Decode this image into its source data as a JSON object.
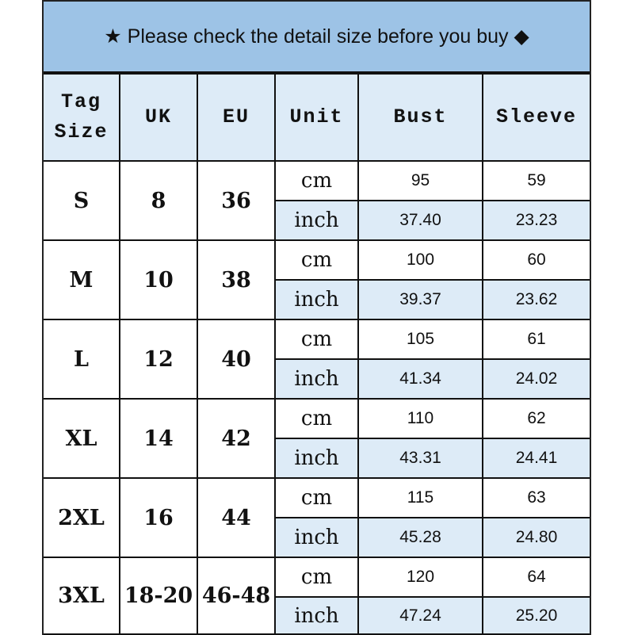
{
  "banner": {
    "text": "★ Please check the detail size before you buy ◆"
  },
  "header": [
    "Tag Size",
    "UK",
    "EU",
    "Unit",
    "Bust",
    "Sleeve"
  ],
  "colors": {
    "banner": "#9dc3e6",
    "header": "#ddebf7",
    "inch_row": "#ddebf7"
  },
  "rows": [
    {
      "tag": "S",
      "uk": "8",
      "eu": "36",
      "cm": {
        "unit": "cm",
        "bust": "95",
        "sleeve": "59"
      },
      "inch": {
        "unit": "inch",
        "bust": "37.40",
        "sleeve": "23.23"
      }
    },
    {
      "tag": "M",
      "uk": "10",
      "eu": "38",
      "cm": {
        "unit": "cm",
        "bust": "100",
        "sleeve": "60"
      },
      "inch": {
        "unit": "inch",
        "bust": "39.37",
        "sleeve": "23.62"
      }
    },
    {
      "tag": "L",
      "uk": "12",
      "eu": "40",
      "cm": {
        "unit": "cm",
        "bust": "105",
        "sleeve": "61"
      },
      "inch": {
        "unit": "inch",
        "bust": "41.34",
        "sleeve": "24.02"
      }
    },
    {
      "tag": "XL",
      "uk": "14",
      "eu": "42",
      "cm": {
        "unit": "cm",
        "bust": "110",
        "sleeve": "62"
      },
      "inch": {
        "unit": "inch",
        "bust": "43.31",
        "sleeve": "24.41"
      }
    },
    {
      "tag": "2XL",
      "uk": "16",
      "eu": "44",
      "cm": {
        "unit": "cm",
        "bust": "115",
        "sleeve": "63"
      },
      "inch": {
        "unit": "inch",
        "bust": "45.28",
        "sleeve": "24.80"
      }
    },
    {
      "tag": "3XL",
      "uk": "18-20",
      "eu": "46-48",
      "cm": {
        "unit": "cm",
        "bust": "120",
        "sleeve": "64"
      },
      "inch": {
        "unit": "inch",
        "bust": "47.24",
        "sleeve": "25.20"
      }
    }
  ]
}
